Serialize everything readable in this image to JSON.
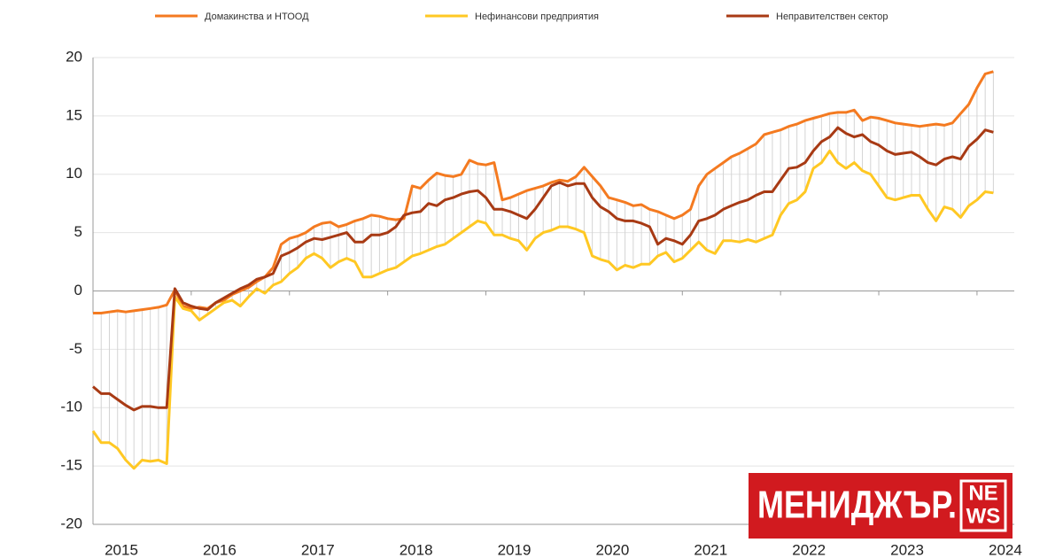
{
  "chart_data": {
    "type": "line",
    "legend_position": "top",
    "grid": true,
    "categories": [
      "2015",
      null,
      null,
      null,
      null,
      null,
      null,
      null,
      null,
      null,
      null,
      null,
      "2016",
      null,
      null,
      null,
      null,
      null,
      null,
      null,
      null,
      null,
      null,
      null,
      "2017",
      null,
      null,
      null,
      null,
      null,
      null,
      null,
      null,
      null,
      null,
      null,
      "2018",
      null,
      null,
      null,
      null,
      null,
      null,
      null,
      null,
      null,
      null,
      null,
      "2019",
      null,
      null,
      null,
      null,
      null,
      null,
      null,
      null,
      null,
      null,
      null,
      "2020",
      null,
      null,
      null,
      null,
      null,
      null,
      null,
      null,
      null,
      null,
      null,
      "2021",
      null,
      null,
      null,
      null,
      null,
      null,
      null,
      null,
      null,
      null,
      null,
      "2022",
      null,
      null,
      null,
      null,
      null,
      null,
      null,
      null,
      null,
      null,
      null,
      "2023",
      null,
      null,
      null,
      null,
      null,
      null,
      null,
      null,
      null,
      null,
      null,
      "2024",
      null,
      null
    ],
    "ylim": [
      -20,
      20
    ],
    "yticks": [
      -20,
      -15,
      -10,
      -5,
      0,
      5,
      10,
      15,
      20
    ],
    "series": [
      {
        "name": "Домакинства и НТООД",
        "color": "#f47a20",
        "values": [
          -1.9,
          -1.9,
          -1.8,
          -1.7,
          -1.8,
          -1.7,
          -1.6,
          -1.5,
          -1.4,
          -1.2,
          0.1,
          -1.3,
          -1.5,
          -1.4,
          -1.5,
          -1.0,
          -0.8,
          -0.3,
          0.0,
          0.3,
          0.8,
          1.2,
          2.0,
          4.0,
          4.5,
          4.7,
          5.0,
          5.5,
          5.8,
          5.9,
          5.5,
          5.7,
          6.0,
          6.2,
          6.5,
          6.4,
          6.2,
          6.1,
          6.2,
          9.0,
          8.8,
          9.5,
          10.1,
          9.9,
          9.8,
          10.0,
          11.2,
          10.9,
          10.8,
          11.0,
          7.8,
          8.0,
          8.3,
          8.6,
          8.8,
          9.0,
          9.3,
          9.5,
          9.4,
          9.8,
          10.6,
          9.8,
          9.0,
          8.0,
          7.8,
          7.6,
          7.3,
          7.4,
          7.0,
          6.8,
          6.5,
          6.2,
          6.5,
          7.0,
          9.0,
          10.0,
          10.5,
          11.0,
          11.5,
          11.8,
          12.2,
          12.6,
          13.4,
          13.6,
          13.8,
          14.1,
          14.3,
          14.6,
          14.8,
          15.0,
          15.2,
          15.3,
          15.3,
          15.5,
          14.6,
          14.9,
          14.8,
          14.6,
          14.4,
          14.3,
          14.2,
          14.1,
          14.2,
          14.3,
          14.2,
          14.4,
          15.2,
          16.0,
          17.4,
          18.6,
          18.8
        ]
      },
      {
        "name": "Нефинансови предприятия",
        "color": "#ffc823",
        "values": [
          -12.0,
          -13.0,
          -13.0,
          -13.5,
          -14.5,
          -15.2,
          -14.5,
          -14.6,
          -14.5,
          -14.8,
          -0.5,
          -1.5,
          -1.7,
          -2.5,
          -2.0,
          -1.5,
          -1.0,
          -0.8,
          -1.3,
          -0.5,
          0.2,
          -0.2,
          0.5,
          0.8,
          1.5,
          2.0,
          2.8,
          3.2,
          2.8,
          2.0,
          2.5,
          2.8,
          2.5,
          1.2,
          1.2,
          1.5,
          1.8,
          2.0,
          2.5,
          3.0,
          3.2,
          3.5,
          3.8,
          4.0,
          4.5,
          5.0,
          5.5,
          6.0,
          5.8,
          4.8,
          4.8,
          4.5,
          4.3,
          3.5,
          4.5,
          5.0,
          5.2,
          5.5,
          5.5,
          5.3,
          5.0,
          3.0,
          2.7,
          2.5,
          1.8,
          2.2,
          2.0,
          2.3,
          2.3,
          3.0,
          3.3,
          2.5,
          2.8,
          3.5,
          4.2,
          3.5,
          3.2,
          4.3,
          4.3,
          4.2,
          4.4,
          4.2,
          4.5,
          4.8,
          6.5,
          7.5,
          7.8,
          8.5,
          10.5,
          11.0,
          12.0,
          11.0,
          10.5,
          11.0,
          10.3,
          10.0,
          9.0,
          8.0,
          7.8,
          8.0,
          8.2,
          8.2,
          7.0,
          6.0,
          7.2,
          7.0,
          6.3,
          7.3,
          7.8,
          8.5,
          8.4
        ]
      },
      {
        "name": "Неправителствен сектор",
        "color": "#a83a14",
        "values": [
          -8.2,
          -8.8,
          -8.8,
          -9.3,
          -9.8,
          -10.2,
          -9.9,
          -9.9,
          -10.0,
          -10.0,
          0.2,
          -1.0,
          -1.3,
          -1.5,
          -1.6,
          -1.0,
          -0.6,
          -0.2,
          0.2,
          0.5,
          1.0,
          1.2,
          1.5,
          3.0,
          3.3,
          3.7,
          4.2,
          4.5,
          4.4,
          4.6,
          4.8,
          5.0,
          4.2,
          4.2,
          4.8,
          4.8,
          5.0,
          5.5,
          6.5,
          6.7,
          6.8,
          7.5,
          7.3,
          7.8,
          8.0,
          8.3,
          8.5,
          8.6,
          8.0,
          7.0,
          7.0,
          6.8,
          6.5,
          6.2,
          7.0,
          8.0,
          9.0,
          9.3,
          9.0,
          9.2,
          9.2,
          8.0,
          7.2,
          6.8,
          6.2,
          6.0,
          6.0,
          5.8,
          5.5,
          4.0,
          4.5,
          4.3,
          4.0,
          4.8,
          6.0,
          6.2,
          6.5,
          7.0,
          7.3,
          7.6,
          7.8,
          8.2,
          8.5,
          8.5,
          9.5,
          10.5,
          10.6,
          11.0,
          12.0,
          12.8,
          13.2,
          14.0,
          13.5,
          13.2,
          13.4,
          12.8,
          12.5,
          12.0,
          11.7,
          11.8,
          11.9,
          11.5,
          11.0,
          10.8,
          11.3,
          11.5,
          11.3,
          12.4,
          13.0,
          13.8,
          13.6
        ]
      }
    ]
  },
  "watermark": {
    "brand": "МЕНИДЖЪР.",
    "tag_top": "NE",
    "tag_bottom": "WS"
  }
}
